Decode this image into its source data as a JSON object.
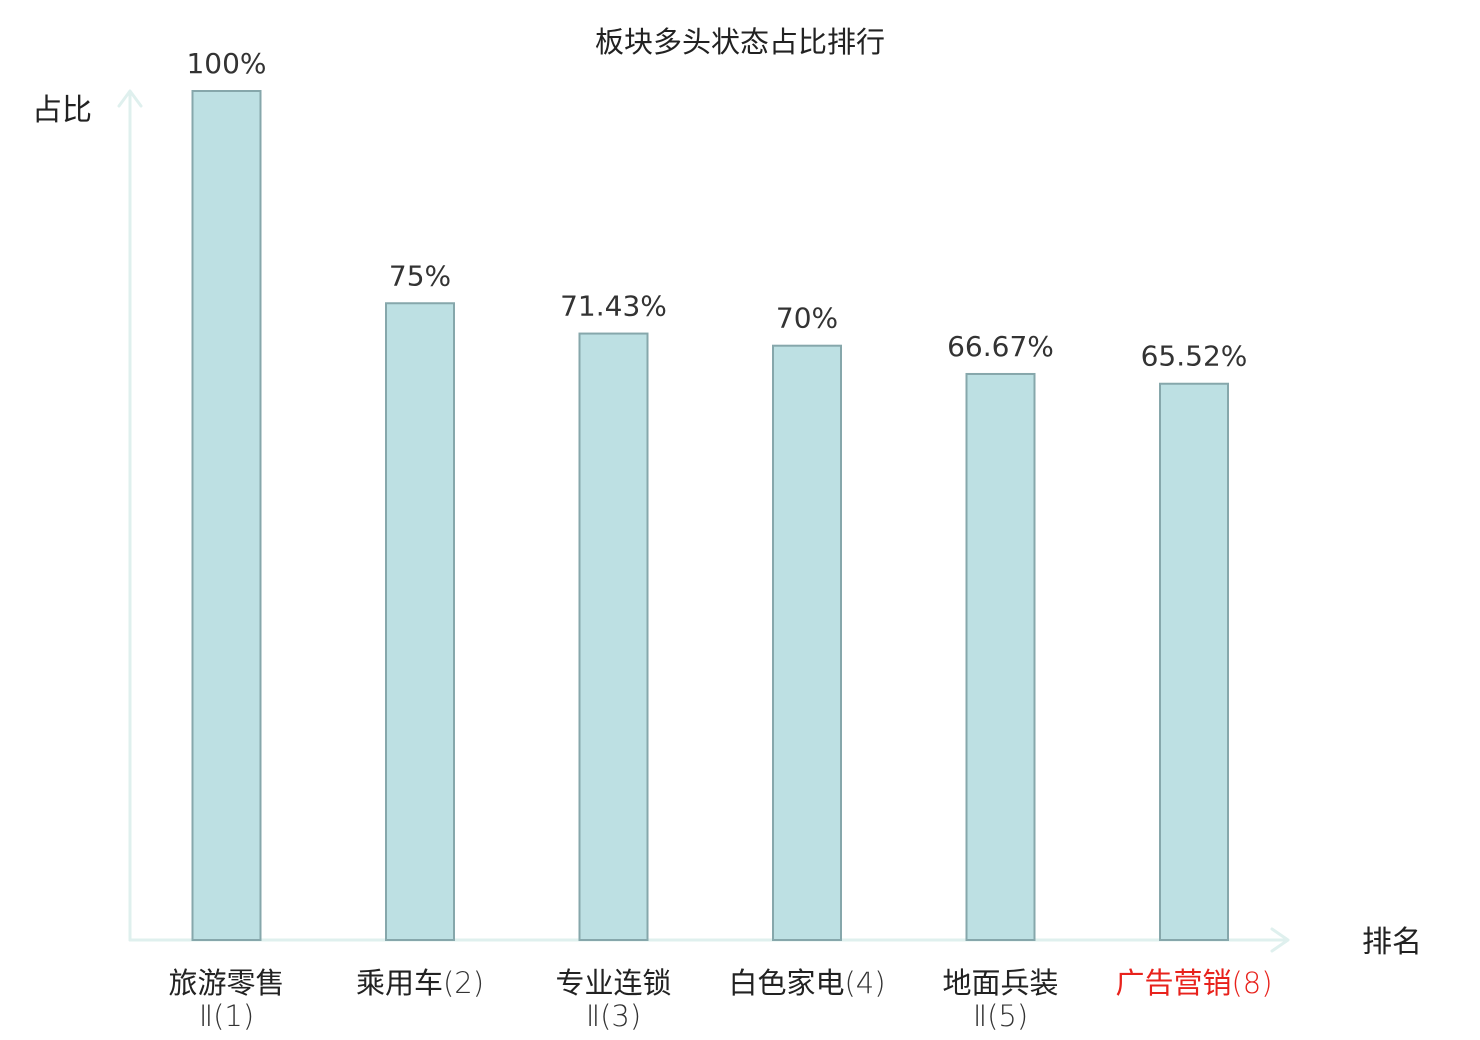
{
  "chart_data": {
    "type": "bar",
    "title": "板块多头状态占比排行",
    "ylabel": "占比",
    "xlabel": "排名",
    "ylim": [
      0,
      100
    ],
    "grid": false,
    "bar_color": "#bde0e3",
    "bar_edge_color": "#86a7ab",
    "axis_color": "#dff0ee",
    "highlight_color": "#e8221c",
    "categories": [
      {
        "name": "旅游零售",
        "rank": "Ⅱ(1)",
        "highlight": false
      },
      {
        "name": "乘用车",
        "rank": "(2)",
        "highlight": false
      },
      {
        "name": "专业连锁",
        "rank": "Ⅱ(3)",
        "highlight": false
      },
      {
        "name": "白色家电",
        "rank": "(4)",
        "highlight": false
      },
      {
        "name": "地面兵装",
        "rank": "Ⅱ(5)",
        "highlight": false
      },
      {
        "name": "广告营销",
        "rank": "(8)",
        "highlight": true
      }
    ],
    "values": [
      100,
      75,
      71.43,
      70,
      66.67,
      65.52
    ],
    "value_labels": [
      "100%",
      "75%",
      "71.43%",
      "70%",
      "66.67%",
      "65.52%"
    ]
  }
}
